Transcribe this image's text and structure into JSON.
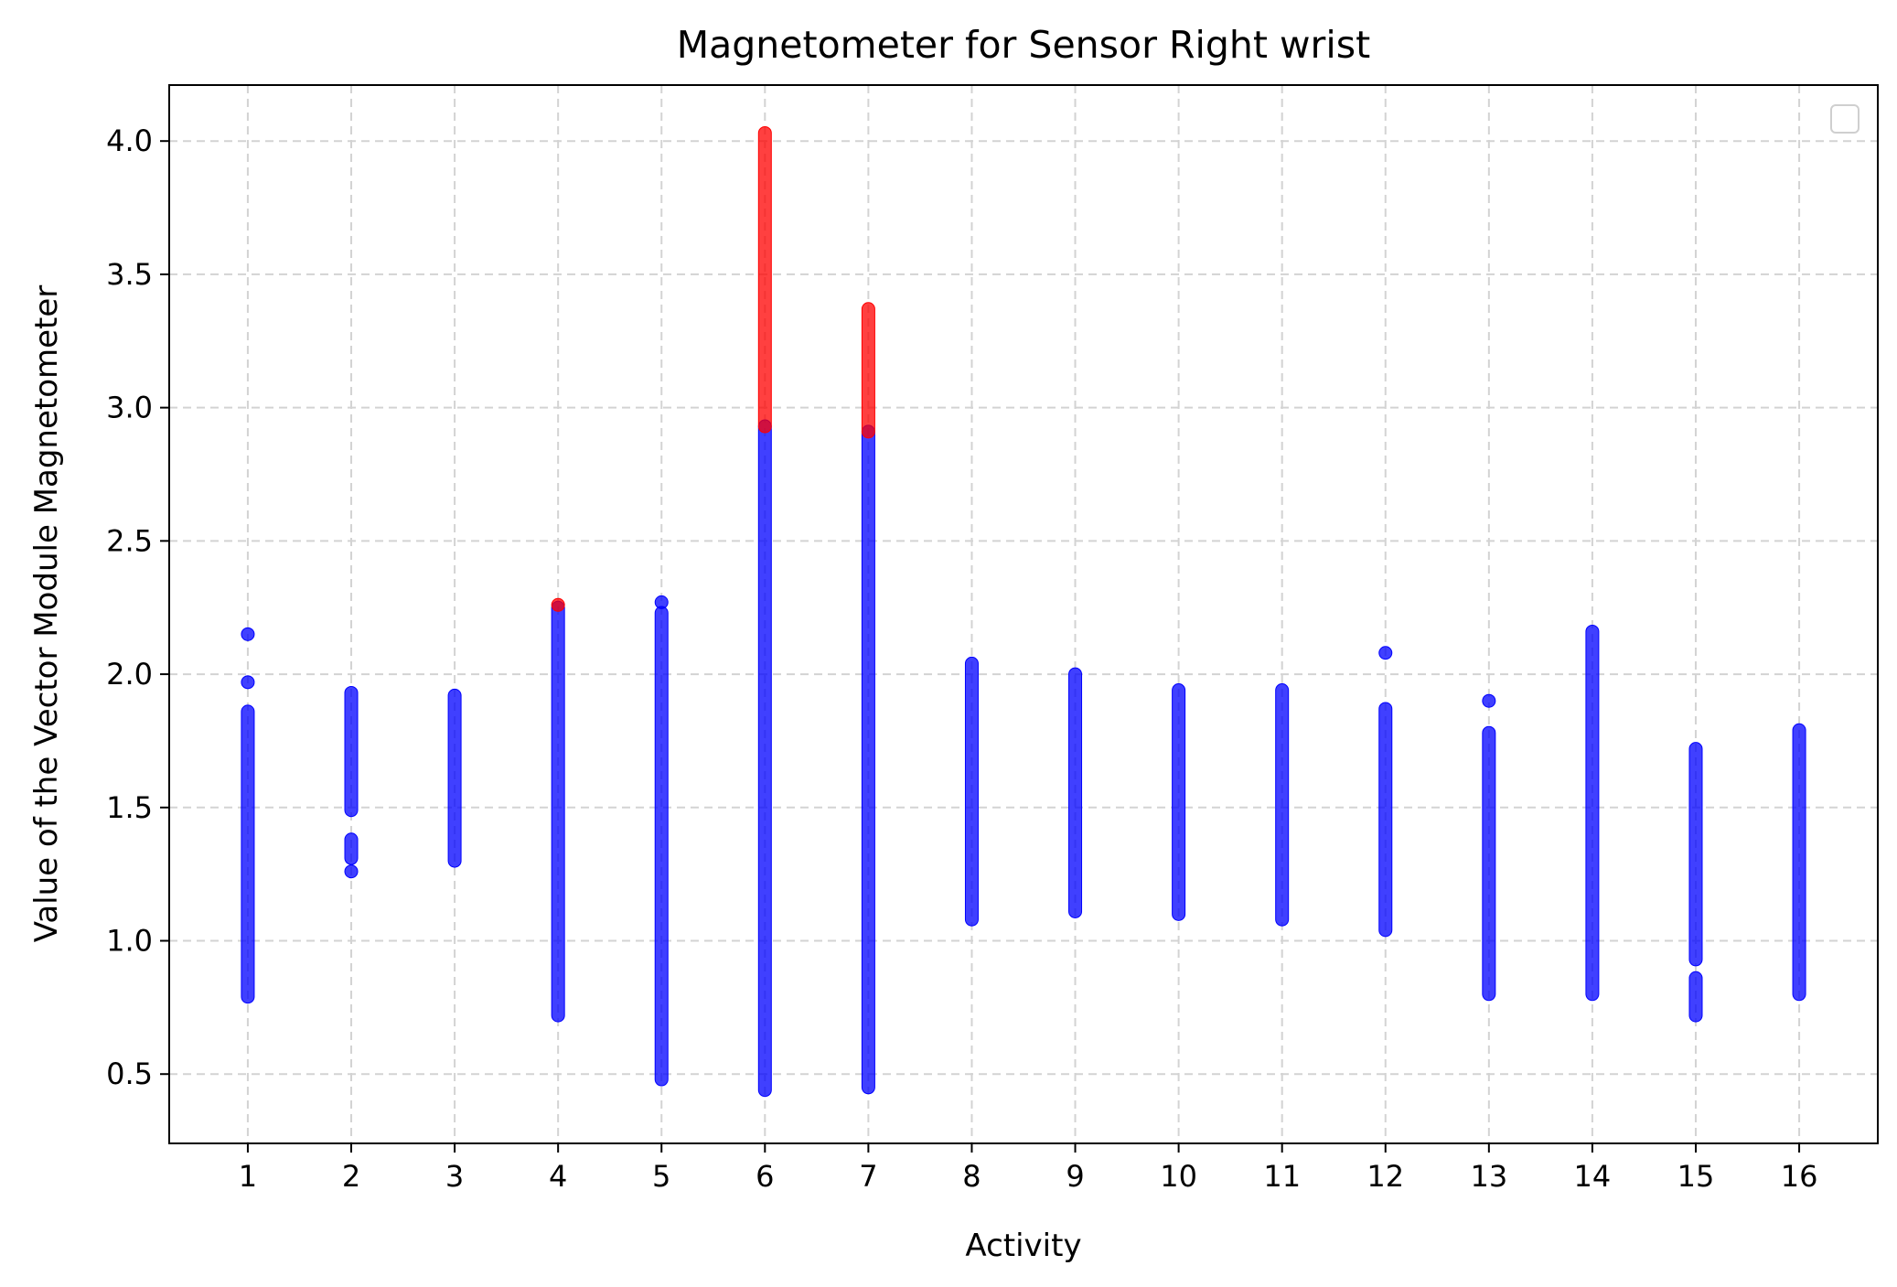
{
  "chart_data": {
    "type": "scatter",
    "title": "Magnetometer for Sensor Right wrist",
    "xlabel": "Activity",
    "ylabel": "Value of the Vector Module Magnetometer",
    "xlim": [
      0.24,
      16.76
    ],
    "ylim": [
      0.24,
      4.21
    ],
    "xticks": [
      1,
      2,
      3,
      4,
      5,
      6,
      7,
      8,
      9,
      10,
      11,
      12,
      13,
      14,
      15,
      16
    ],
    "yticks": [
      0.5,
      1.0,
      1.5,
      2.0,
      2.5,
      3.0,
      3.5,
      4.0
    ],
    "ytick_labels": [
      "0.5",
      "1.0",
      "1.5",
      "2.0",
      "2.5",
      "3.0",
      "3.5",
      "4.0"
    ],
    "grid": true,
    "legend": {
      "placement": "top-right",
      "entries": []
    },
    "colors": {
      "normal": "#0000ff",
      "outlier": "#ff0000"
    },
    "series": [
      {
        "color": "#0000ff",
        "ranges": [
          {
            "x": 1,
            "y_min": 0.79,
            "y_max": 1.86
          },
          {
            "x": 2,
            "y_min": 1.49,
            "y_max": 1.93
          },
          {
            "x": 2,
            "y_min": 1.31,
            "y_max": 1.38
          },
          {
            "x": 3,
            "y_min": 1.3,
            "y_max": 1.92
          },
          {
            "x": 4,
            "y_min": 0.72,
            "y_max": 2.25
          },
          {
            "x": 5,
            "y_min": 0.48,
            "y_max": 2.23
          },
          {
            "x": 6,
            "y_min": 0.44,
            "y_max": 2.93
          },
          {
            "x": 7,
            "y_min": 0.45,
            "y_max": 2.91
          },
          {
            "x": 8,
            "y_min": 1.08,
            "y_max": 2.04
          },
          {
            "x": 9,
            "y_min": 1.11,
            "y_max": 2.0
          },
          {
            "x": 10,
            "y_min": 1.1,
            "y_max": 1.94
          },
          {
            "x": 11,
            "y_min": 1.08,
            "y_max": 1.94
          },
          {
            "x": 12,
            "y_min": 1.04,
            "y_max": 1.87
          },
          {
            "x": 13,
            "y_min": 0.8,
            "y_max": 1.78
          },
          {
            "x": 14,
            "y_min": 0.8,
            "y_max": 2.16
          },
          {
            "x": 15,
            "y_min": 0.93,
            "y_max": 1.72
          },
          {
            "x": 15,
            "y_min": 0.72,
            "y_max": 0.86
          },
          {
            "x": 16,
            "y_min": 0.8,
            "y_max": 1.79
          }
        ],
        "points": [
          {
            "x": 1,
            "y": 2.15
          },
          {
            "x": 1,
            "y": 1.97
          },
          {
            "x": 2,
            "y": 1.26
          },
          {
            "x": 5,
            "y": 2.27
          },
          {
            "x": 12,
            "y": 2.08
          },
          {
            "x": 13,
            "y": 1.9
          }
        ]
      },
      {
        "color": "#ff0000",
        "ranges": [
          {
            "x": 6,
            "y_min": 2.93,
            "y_max": 4.03
          },
          {
            "x": 7,
            "y_min": 2.91,
            "y_max": 3.37
          }
        ],
        "points": [
          {
            "x": 4,
            "y": 2.26
          }
        ]
      }
    ]
  }
}
